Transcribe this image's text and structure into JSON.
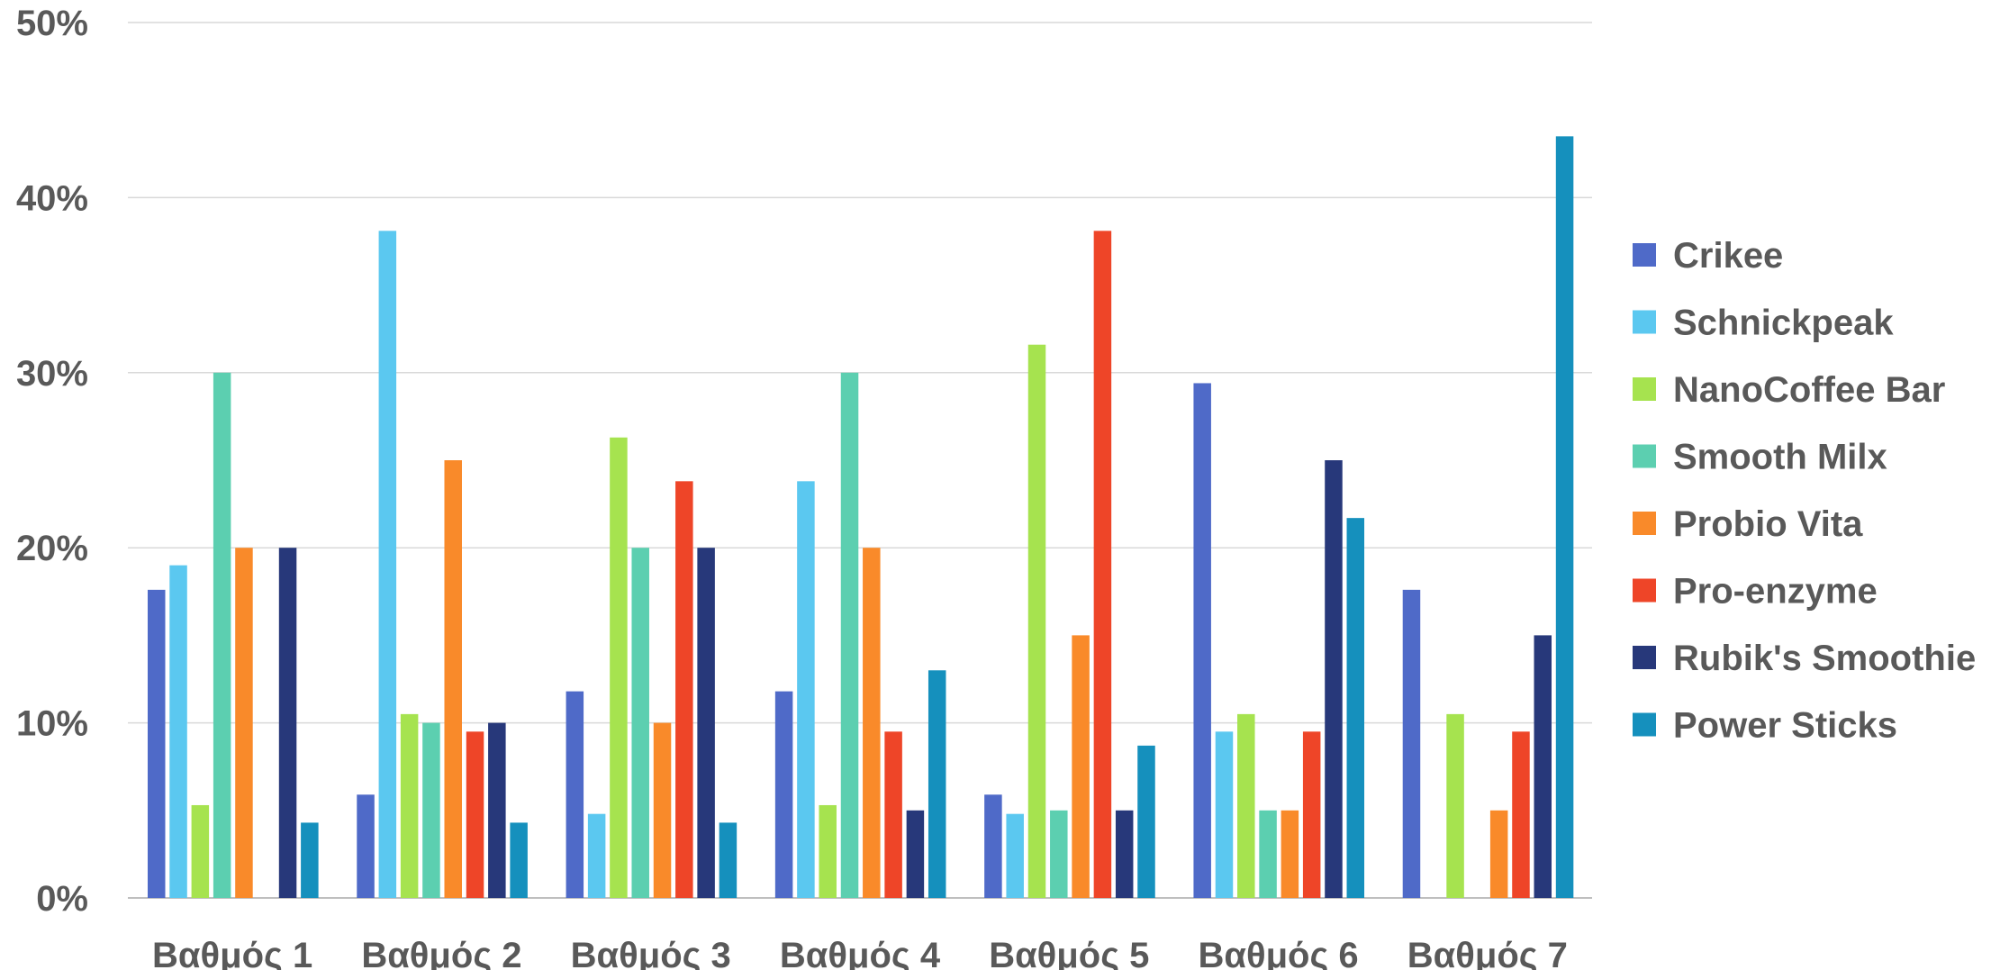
{
  "chart_data": {
    "type": "bar",
    "categories": [
      "Βαθμός 1",
      "Βαθμός 2",
      "Βαθμός 3",
      "Βαθμός 4",
      "Βαθμός 5",
      "Βαθμός 6",
      "Βαθμός 7"
    ],
    "yticks": [
      "0%",
      "10%",
      "20%",
      "30%",
      "40%",
      "50%"
    ],
    "ylim": [
      0,
      50
    ],
    "grid": true,
    "legend_position": "right",
    "series": [
      {
        "name": "Crikee",
        "color": "#4F6AC8",
        "values": [
          17.6,
          5.9,
          11.8,
          11.8,
          5.9,
          29.4,
          17.6
        ]
      },
      {
        "name": "Schnickpeak",
        "color": "#5BC8F0",
        "values": [
          19.0,
          38.1,
          4.8,
          23.8,
          4.8,
          9.5,
          0
        ]
      },
      {
        "name": "NanoCoffee Bar",
        "color": "#A6E34F",
        "values": [
          5.3,
          10.5,
          26.3,
          5.3,
          31.6,
          10.5,
          10.5
        ]
      },
      {
        "name": "Smooth Milx",
        "color": "#5CCFB0",
        "values": [
          30.0,
          10.0,
          20.0,
          30.0,
          5.0,
          5.0,
          0
        ]
      },
      {
        "name": "Probio Vita",
        "color": "#F98A2A",
        "values": [
          20.0,
          25.0,
          10.0,
          20.0,
          15.0,
          5.0,
          5.0
        ]
      },
      {
        "name": "Pro-enzyme",
        "color": "#EE4528",
        "values": [
          0,
          9.5,
          23.8,
          9.5,
          38.1,
          9.5,
          9.5
        ]
      },
      {
        "name": "Rubik's Smoothie",
        "color": "#27387A",
        "values": [
          20.0,
          10.0,
          20.0,
          5.0,
          5.0,
          25.0,
          15.0
        ]
      },
      {
        "name": "Power Sticks",
        "color": "#1590BD",
        "values": [
          4.3,
          4.3,
          4.3,
          13.0,
          8.7,
          21.7,
          43.5
        ]
      }
    ]
  }
}
